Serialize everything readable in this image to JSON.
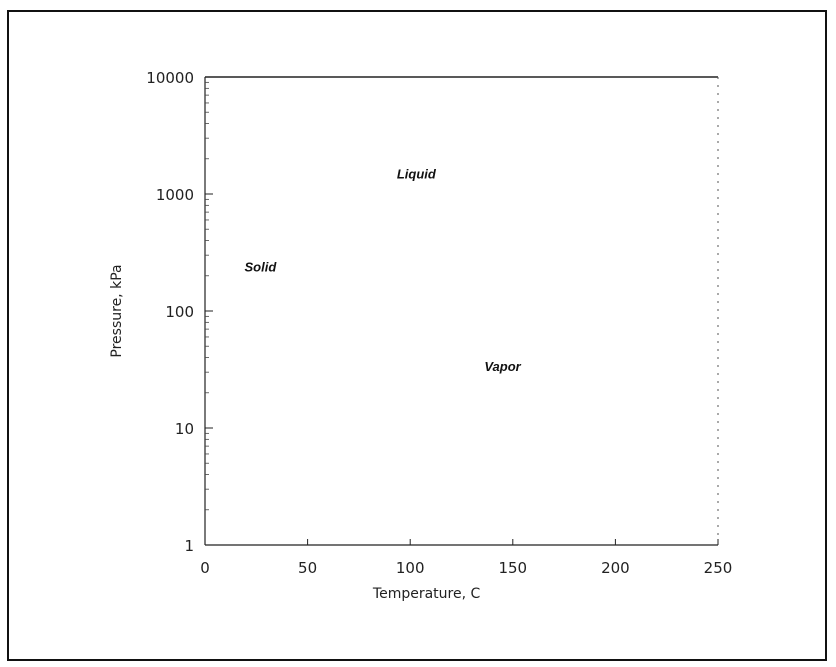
{
  "chart_data": {
    "type": "line",
    "title": "",
    "xlabel": "Temperature, C",
    "ylabel": "Pressure, kPa",
    "xlim": [
      0,
      250
    ],
    "ylim": [
      1,
      10000
    ],
    "yscale": "log",
    "grid": false,
    "x_ticks": [
      0,
      50,
      100,
      150,
      200,
      250
    ],
    "x_tick_labels": [
      "0",
      "50",
      "100",
      "150",
      "200",
      "250"
    ],
    "y_ticks": [
      1,
      10,
      100,
      1000,
      10000
    ],
    "y_tick_labels": [
      "1",
      "10",
      "100",
      "1000",
      "10000"
    ],
    "series": [],
    "annotations": [
      {
        "text": "Liquid",
        "x": 103,
        "y": 1500
      },
      {
        "text": "Solid",
        "x": 27,
        "y": 240
      },
      {
        "text": "Vapor",
        "x": 145,
        "y": 34
      }
    ]
  }
}
